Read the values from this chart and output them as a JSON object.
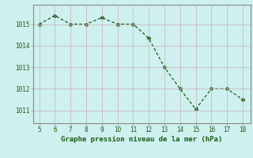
{
  "x": [
    5,
    6,
    7,
    8,
    9,
    10,
    11,
    12,
    13,
    14,
    15,
    16,
    17,
    18
  ],
  "y": [
    1015.0,
    1015.4,
    1015.0,
    1015.0,
    1015.3,
    1015.0,
    1015.0,
    1014.35,
    1013.0,
    1012.0,
    1011.05,
    1012.0,
    1012.0,
    1011.5
  ],
  "line_color": "#1a5c1a",
  "marker": "D",
  "marker_size": 2.5,
  "background_color": "#cef0ee",
  "grid_color": "#c8b0b8",
  "xlabel": "Graphe pression niveau de la mer (hPa)",
  "xlabel_color": "#1a5c1a",
  "xlabel_fontsize": 6.5,
  "tick_color": "#1a5c1a",
  "tick_fontsize": 5.5,
  "ytick_labels": [
    "1011",
    "1012",
    "1013",
    "1014",
    "1015"
  ],
  "ytick_values": [
    1011,
    1012,
    1013,
    1014,
    1015
  ],
  "ylim": [
    1010.4,
    1015.9
  ],
  "xlim": [
    4.6,
    18.5
  ],
  "xtick_values": [
    5,
    6,
    7,
    8,
    9,
    10,
    11,
    12,
    13,
    14,
    15,
    16,
    17,
    18
  ],
  "spine_color": "#888888",
  "linewidth": 0.9
}
